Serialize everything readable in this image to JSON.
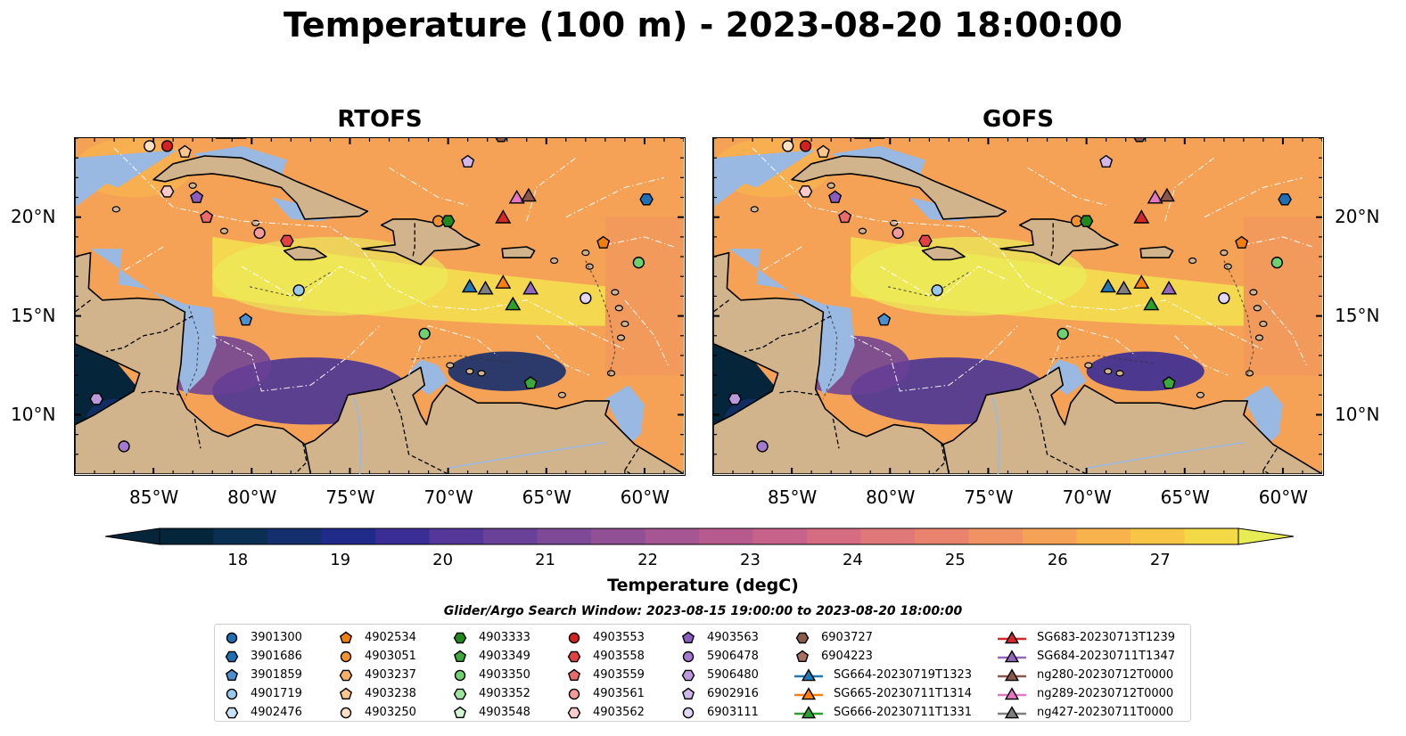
{
  "figure": {
    "title": "Temperature (100 m) - 2023-08-20 18:00:00",
    "panels": [
      {
        "id": "rtofs",
        "title": "RTOFS"
      },
      {
        "id": "gofs",
        "title": "GOFS"
      }
    ]
  },
  "axes": {
    "x_ticks": [
      "85°W",
      "80°W",
      "75°W",
      "70°W",
      "65°W",
      "60°W"
    ],
    "y_ticks": [
      "20°N",
      "15°N",
      "10°N"
    ],
    "lon_range": [
      -89,
      -58
    ],
    "lat_range": [
      7,
      24
    ]
  },
  "colorbar": {
    "label": "Temperature (degC)",
    "ticks": [
      "18",
      "19",
      "20",
      "21",
      "22",
      "23",
      "24",
      "25",
      "26",
      "27"
    ],
    "range": [
      17.5,
      27.5
    ],
    "colors": [
      "#04253a",
      "#0b2f52",
      "#152f6e",
      "#202a89",
      "#3a2d96",
      "#543798",
      "#6a4198",
      "#7e4a98",
      "#914f96",
      "#a55693",
      "#b75b8f",
      "#c7638a",
      "#d56c82",
      "#e07779",
      "#e9836e",
      "#f09262",
      "#f5a256",
      "#f8b34d",
      "#f9c546",
      "#f4d947",
      "#e8ec54"
    ]
  },
  "search_window": "Glider/Argo Search Window: 2023-08-15 19:00:00 to 2023-08-20 18:00:00",
  "legend": [
    {
      "label": "3901300",
      "shape": "circle",
      "color": "#1f6fb4"
    },
    {
      "label": "3901686",
      "shape": "hexagon",
      "color": "#1f6fb4"
    },
    {
      "label": "3901859",
      "shape": "pentagon",
      "color": "#4a90cf"
    },
    {
      "label": "4901719",
      "shape": "circle",
      "color": "#9ac8ea"
    },
    {
      "label": "4902476",
      "shape": "hexagon",
      "color": "#c8e2f5"
    },
    {
      "label": "4902534",
      "shape": "pentagon",
      "color": "#f07f10"
    },
    {
      "label": "4903051",
      "shape": "circle",
      "color": "#f5922e"
    },
    {
      "label": "4903237",
      "shape": "hexagon",
      "color": "#f7b066"
    },
    {
      "label": "4903238",
      "shape": "pentagon",
      "color": "#f9c78e"
    },
    {
      "label": "4903250",
      "shape": "circle",
      "color": "#fde0c2"
    },
    {
      "label": "4903333",
      "shape": "hexagon",
      "color": "#1e8a1e"
    },
    {
      "label": "4903349",
      "shape": "pentagon",
      "color": "#3aa83a"
    },
    {
      "label": "4903350",
      "shape": "circle",
      "color": "#6fd06f"
    },
    {
      "label": "4903352",
      "shape": "hexagon",
      "color": "#9ee39e"
    },
    {
      "label": "4903548",
      "shape": "pentagon",
      "color": "#d2f5d2"
    },
    {
      "label": "4903553",
      "shape": "circle",
      "color": "#d62020"
    },
    {
      "label": "4903558",
      "shape": "hexagon",
      "color": "#e04242"
    },
    {
      "label": "4903559",
      "shape": "pentagon",
      "color": "#ea6b6b"
    },
    {
      "label": "4903561",
      "shape": "circle",
      "color": "#f39a9a"
    },
    {
      "label": "4903562",
      "shape": "hexagon",
      "color": "#fbcaca"
    },
    {
      "label": "4903563",
      "shape": "pentagon",
      "color": "#8a5cc0"
    },
    {
      "label": "5906478",
      "shape": "circle",
      "color": "#a47ad0"
    },
    {
      "label": "5906480",
      "shape": "hexagon",
      "color": "#bc98dc"
    },
    {
      "label": "6902916",
      "shape": "pentagon",
      "color": "#d2b8ea"
    },
    {
      "label": "6903111",
      "shape": "circle",
      "color": "#e6d6f6"
    },
    {
      "label": "6903727",
      "shape": "hexagon",
      "color": "#8b5a4a"
    },
    {
      "label": "6904223",
      "shape": "pentagon",
      "color": "#a87060"
    },
    {
      "label": "SG664-20230719T1323",
      "shape": "triangle",
      "color": "#1f77b4"
    },
    {
      "label": "SG665-20230711T1314",
      "shape": "triangle",
      "color": "#ff7f0e"
    },
    {
      "label": "SG666-20230711T1331",
      "shape": "triangle",
      "color": "#2ca02c"
    },
    {
      "label": "SG683-20230713T1239",
      "shape": "triangle",
      "color": "#d62728"
    },
    {
      "label": "SG684-20230711T1347",
      "shape": "triangle",
      "color": "#9467bd"
    },
    {
      "label": "ng280-20230712T0000",
      "shape": "triangle",
      "color": "#8c564b"
    },
    {
      "label": "ng289-20230712T0000",
      "shape": "triangle",
      "color": "#e377c2"
    },
    {
      "label": "ng427-20230711T0000",
      "shape": "triangle",
      "color": "#7f7f7f"
    }
  ],
  "markers": [
    {
      "lon": -84.3,
      "lat": 23.6,
      "shape": "circle",
      "color": "#d62020"
    },
    {
      "lon": -85.2,
      "lat": 23.6,
      "shape": "circle",
      "color": "#fde0c2"
    },
    {
      "lon": -83.4,
      "lat": 23.3,
      "shape": "pentagon",
      "color": "#f9c78e"
    },
    {
      "lon": -84.3,
      "lat": 21.3,
      "shape": "hexagon",
      "color": "#fbcaca"
    },
    {
      "lon": -82.8,
      "lat": 21.0,
      "shape": "pentagon",
      "color": "#8a5cc0"
    },
    {
      "lon": -82.3,
      "lat": 20.0,
      "shape": "pentagon",
      "color": "#ea6b6b"
    },
    {
      "lon": -79.6,
      "lat": 19.2,
      "shape": "circle",
      "color": "#f39a9a"
    },
    {
      "lon": -78.2,
      "lat": 18.8,
      "shape": "hexagon",
      "color": "#e04242"
    },
    {
      "lon": -77.6,
      "lat": 16.3,
      "shape": "circle",
      "color": "#9ac8ea"
    },
    {
      "lon": -80.3,
      "lat": 14.8,
      "shape": "pentagon",
      "color": "#4a90cf"
    },
    {
      "lon": -70.5,
      "lat": 19.8,
      "shape": "circle",
      "color": "#f5922e"
    },
    {
      "lon": -70.0,
      "lat": 19.8,
      "shape": "hexagon",
      "color": "#1e8a1e"
    },
    {
      "lon": -69.0,
      "lat": 22.8,
      "shape": "pentagon",
      "color": "#d2b8ea"
    },
    {
      "lon": -59.9,
      "lat": 20.9,
      "shape": "hexagon",
      "color": "#1f6fb4"
    },
    {
      "lon": -62.1,
      "lat": 18.7,
      "shape": "pentagon",
      "color": "#f07f10"
    },
    {
      "lon": -60.3,
      "lat": 17.7,
      "shape": "circle",
      "color": "#6fd06f"
    },
    {
      "lon": -63.0,
      "lat": 15.9,
      "shape": "circle",
      "color": "#e6d6f6"
    },
    {
      "lon": -71.2,
      "lat": 14.1,
      "shape": "circle",
      "color": "#6fd06f"
    },
    {
      "lon": -65.8,
      "lat": 11.6,
      "shape": "pentagon",
      "color": "#3aa83a"
    },
    {
      "lon": -87.9,
      "lat": 10.8,
      "shape": "hexagon",
      "color": "#bc98dc"
    },
    {
      "lon": -86.5,
      "lat": 8.4,
      "shape": "circle",
      "color": "#a47ad0"
    },
    {
      "lon": -67.3,
      "lat": 24.1,
      "shape": "hexagon",
      "color": "#8b5a4a"
    },
    {
      "lon": -67.2,
      "lat": 20.0,
      "shape": "triangle",
      "color": "#d62728"
    },
    {
      "lon": -66.5,
      "lat": 21.0,
      "shape": "triangle",
      "color": "#e377c2"
    },
    {
      "lon": -65.9,
      "lat": 21.1,
      "shape": "triangle",
      "color": "#8c564b"
    },
    {
      "lon": -68.9,
      "lat": 16.5,
      "shape": "triangle",
      "color": "#1f77b4"
    },
    {
      "lon": -68.1,
      "lat": 16.4,
      "shape": "triangle",
      "color": "#7f7f7f"
    },
    {
      "lon": -67.2,
      "lat": 16.7,
      "shape": "triangle",
      "color": "#ff7f0e"
    },
    {
      "lon": -66.7,
      "lat": 15.6,
      "shape": "triangle",
      "color": "#2ca02c"
    },
    {
      "lon": -65.8,
      "lat": 16.4,
      "shape": "triangle",
      "color": "#9467bd"
    }
  ]
}
